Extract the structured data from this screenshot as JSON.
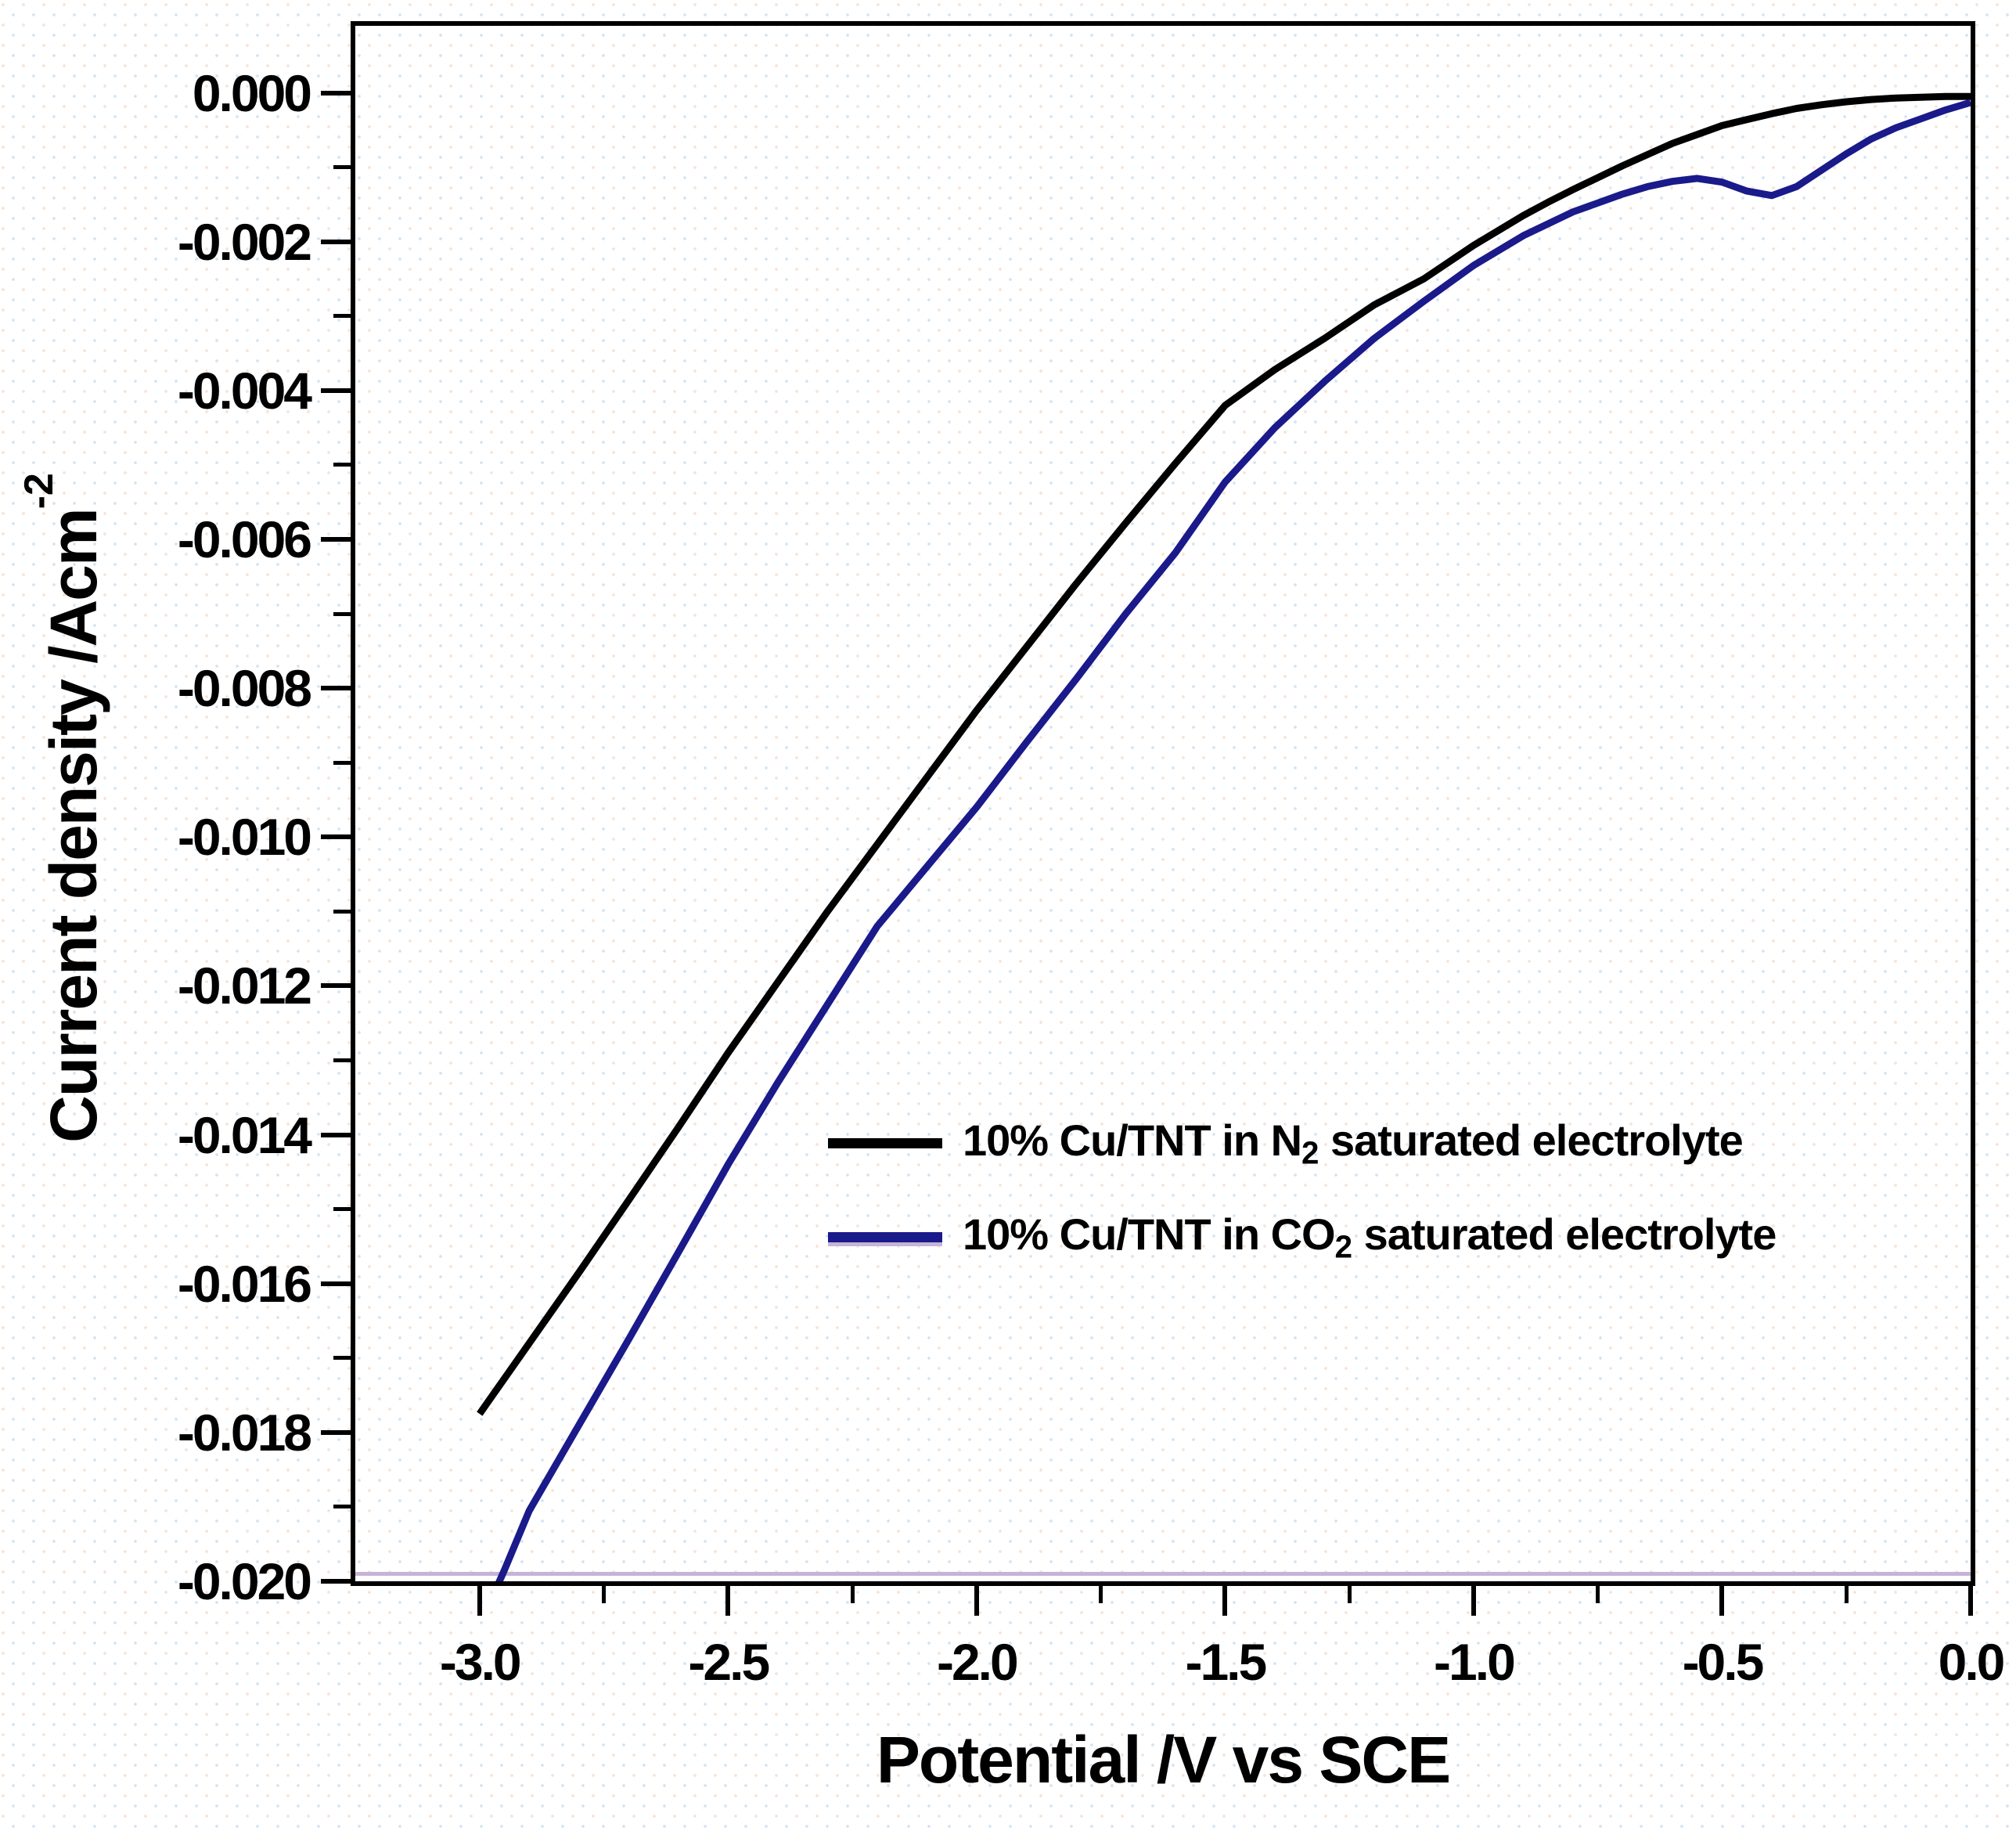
{
  "figure": {
    "frame_color": "#000000",
    "background_dot_colors": [
      "#d2e5f5",
      "#f9e3d3"
    ],
    "artifact_line": {
      "color": "#c5b4d7",
      "y_value": -0.0199,
      "thickness": 5
    }
  },
  "chart_data": {
    "type": "line",
    "title": "",
    "xlabel": "Potential /V vs SCE",
    "ylabel": "Current density /Acm-2",
    "ylabel_parts": {
      "main": "Current density /Acm",
      "superscript": "-2"
    },
    "xlim": [
      -3.25,
      0.0
    ],
    "ylim": [
      -0.02,
      0.0009
    ],
    "grid": false,
    "legend_position": "center-right",
    "x_ticks_major": [
      -3.0,
      -2.5,
      -2.0,
      -1.5,
      -1.0,
      -0.5,
      0.0
    ],
    "x_tick_labels": [
      "-3.0",
      "-2.5",
      "-2.0",
      "-1.5",
      "-1.0",
      "-0.5",
      "0.0"
    ],
    "x_ticks_minor": [
      -2.75,
      -2.25,
      -1.75,
      -1.25,
      -0.75,
      -0.25
    ],
    "y_ticks_major": [
      0.0,
      -0.002,
      -0.004,
      -0.006,
      -0.008,
      -0.01,
      -0.012,
      -0.014,
      -0.016,
      -0.018,
      -0.02
    ],
    "y_tick_labels": [
      "0.000",
      "-0.002",
      "-0.004",
      "-0.006",
      "-0.008",
      "-0.010",
      "-0.012",
      "-0.014",
      "-0.016",
      "-0.018",
      "-0.020"
    ],
    "y_ticks_minor": [
      -0.001,
      -0.003,
      -0.005,
      -0.007,
      -0.009,
      -0.011,
      -0.013,
      -0.015,
      -0.017,
      -0.019
    ],
    "series": [
      {
        "name": "10% Cu/TNT in N2 saturated electrolyte",
        "name_parts": {
          "prefix": "10% Cu/TNT in N",
          "sub": "2",
          "suffix": " saturated electrolyte"
        },
        "color": "#000000",
        "line_width": 9,
        "points": [
          [
            -3.0,
            -0.01775
          ],
          [
            -2.9,
            -0.0168
          ],
          [
            -2.8,
            -0.01585
          ],
          [
            -2.7,
            -0.01488
          ],
          [
            -2.6,
            -0.0139
          ],
          [
            -2.5,
            -0.0129
          ],
          [
            -2.4,
            -0.01195
          ],
          [
            -2.3,
            -0.011
          ],
          [
            -2.2,
            -0.0101
          ],
          [
            -2.1,
            -0.0092
          ],
          [
            -2.0,
            -0.0083
          ],
          [
            -1.9,
            -0.00745
          ],
          [
            -1.8,
            -0.0066
          ],
          [
            -1.7,
            -0.00578
          ],
          [
            -1.6,
            -0.00498
          ],
          [
            -1.5,
            -0.0042
          ],
          [
            -1.4,
            -0.00372
          ],
          [
            -1.3,
            -0.0033
          ],
          [
            -1.2,
            -0.00285
          ],
          [
            -1.1,
            -0.0025
          ],
          [
            -1.0,
            -0.00205
          ],
          [
            -0.9,
            -0.00165
          ],
          [
            -0.85,
            -0.00147
          ],
          [
            -0.8,
            -0.0013
          ],
          [
            -0.7,
            -0.00098
          ],
          [
            -0.6,
            -0.00068
          ],
          [
            -0.5,
            -0.00044
          ],
          [
            -0.45,
            -0.00036
          ],
          [
            -0.4,
            -0.00028
          ],
          [
            -0.35,
            -0.00021
          ],
          [
            -0.3,
            -0.00016
          ],
          [
            -0.25,
            -0.00012
          ],
          [
            -0.2,
            -9e-05
          ],
          [
            -0.15,
            -7e-05
          ],
          [
            -0.1,
            -6e-05
          ],
          [
            -0.05,
            -5e-05
          ],
          [
            0.0,
            -5e-05
          ]
        ]
      },
      {
        "name": "10% Cu/TNT in CO2 saturated electrolyte",
        "name_parts": {
          "prefix": "10% Cu/TNT in CO",
          "sub": "2",
          "suffix": " saturated electrolyte"
        },
        "color": "#1a1a8b",
        "line_width": 9,
        "points": [
          [
            -3.0,
            -0.0206
          ],
          [
            -2.95,
            -0.01985
          ],
          [
            -2.9,
            -0.01905
          ],
          [
            -2.8,
            -0.0179
          ],
          [
            -2.7,
            -0.01675
          ],
          [
            -2.6,
            -0.01558
          ],
          [
            -2.5,
            -0.0144
          ],
          [
            -2.4,
            -0.0133
          ],
          [
            -2.3,
            -0.01225
          ],
          [
            -2.2,
            -0.0112
          ],
          [
            -2.1,
            -0.0104
          ],
          [
            -2.0,
            -0.0096
          ],
          [
            -1.9,
            -0.00873
          ],
          [
            -1.8,
            -0.00788
          ],
          [
            -1.7,
            -0.007
          ],
          [
            -1.6,
            -0.00618
          ],
          [
            -1.5,
            -0.00523
          ],
          [
            -1.4,
            -0.0045
          ],
          [
            -1.3,
            -0.00388
          ],
          [
            -1.2,
            -0.0033
          ],
          [
            -1.1,
            -0.0028
          ],
          [
            -1.0,
            -0.00232
          ],
          [
            -0.9,
            -0.00192
          ],
          [
            -0.8,
            -0.0016
          ],
          [
            -0.75,
            -0.00148
          ],
          [
            -0.7,
            -0.00136
          ],
          [
            -0.65,
            -0.00126
          ],
          [
            -0.6,
            -0.00119
          ],
          [
            -0.55,
            -0.00115
          ],
          [
            -0.5,
            -0.0012
          ],
          [
            -0.45,
            -0.00132
          ],
          [
            -0.4,
            -0.00138
          ],
          [
            -0.35,
            -0.00126
          ],
          [
            -0.3,
            -0.00104
          ],
          [
            -0.25,
            -0.00082
          ],
          [
            -0.2,
            -0.00062
          ],
          [
            -0.15,
            -0.00047
          ],
          [
            -0.1,
            -0.00035
          ],
          [
            -0.05,
            -0.00023
          ],
          [
            0.0,
            -0.00013
          ]
        ]
      }
    ]
  },
  "legend": {
    "items": [
      {
        "prefix": "10% Cu/TNT in N",
        "sub": "2",
        "suffix": " saturated electrolyte",
        "color": "#000000"
      },
      {
        "prefix": "10% Cu/TNT in CO",
        "sub": "2",
        "suffix": " saturated electrolyte",
        "color": "#1a1a8b"
      }
    ]
  }
}
